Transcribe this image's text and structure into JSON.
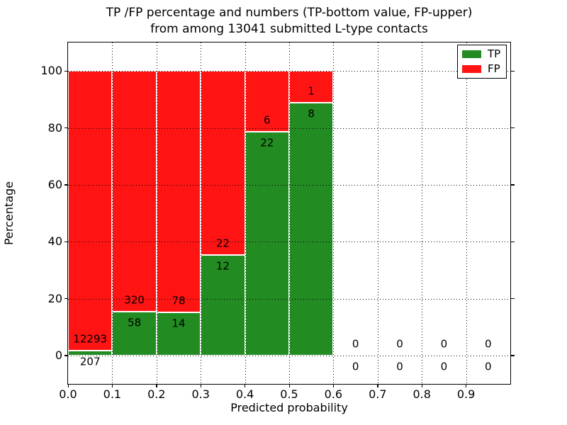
{
  "title": {
    "line1": "TP /FP percentage and numbers (TP-bottom value, FP-upper)",
    "line2": "from among 13041 submitted L-type contacts"
  },
  "colors": {
    "tp": "#228b22",
    "fp": "#ff1414",
    "grid": "#000000",
    "background": "#ffffff"
  },
  "legend": {
    "items": [
      {
        "label": "TP",
        "color_key": "tp"
      },
      {
        "label": "FP",
        "color_key": "fp"
      }
    ]
  },
  "chart_data": {
    "type": "bar",
    "stacked": true,
    "title": "TP /FP percentage and numbers (TP-bottom value, FP-upper) from among 13041 submitted L-type contacts",
    "xlabel": "Predicted probability",
    "ylabel": "Percentage",
    "total_contacts": 13041,
    "xlim": [
      0.0,
      1.0
    ],
    "ylim": [
      -10,
      110
    ],
    "grid": true,
    "legend_position": "upper right",
    "series_note": "bar height = count percentage of bin total; TP green bottom, FP red top, stacked to 100",
    "xticks": [
      {
        "value": 0.0,
        "label": "0.0"
      },
      {
        "value": 0.1,
        "label": "0.1"
      },
      {
        "value": 0.2,
        "label": "0.2"
      },
      {
        "value": 0.3,
        "label": "0.3"
      },
      {
        "value": 0.4,
        "label": "0.4"
      },
      {
        "value": 0.5,
        "label": "0.5"
      },
      {
        "value": 0.6,
        "label": "0.6"
      },
      {
        "value": 0.7,
        "label": "0.7"
      },
      {
        "value": 0.8,
        "label": "0.8"
      },
      {
        "value": 0.9,
        "label": "0.9"
      }
    ],
    "yticks": [
      {
        "value": 0,
        "label": "0"
      },
      {
        "value": 20,
        "label": "20"
      },
      {
        "value": 40,
        "label": "40"
      },
      {
        "value": 60,
        "label": "60"
      },
      {
        "value": 80,
        "label": "80"
      },
      {
        "value": 100,
        "label": "100"
      }
    ],
    "bins": [
      {
        "x_start": 0.0,
        "x_end": 0.1,
        "tp": 207,
        "fp": 12293
      },
      {
        "x_start": 0.1,
        "x_end": 0.2,
        "tp": 58,
        "fp": 320
      },
      {
        "x_start": 0.2,
        "x_end": 0.3,
        "tp": 14,
        "fp": 78
      },
      {
        "x_start": 0.3,
        "x_end": 0.4,
        "tp": 12,
        "fp": 22
      },
      {
        "x_start": 0.4,
        "x_end": 0.5,
        "tp": 22,
        "fp": 6
      },
      {
        "x_start": 0.5,
        "x_end": 0.6,
        "tp": 8,
        "fp": 1
      },
      {
        "x_start": 0.6,
        "x_end": 0.7,
        "tp": 0,
        "fp": 0
      },
      {
        "x_start": 0.7,
        "x_end": 0.8,
        "tp": 0,
        "fp": 0
      },
      {
        "x_start": 0.8,
        "x_end": 0.9,
        "tp": 0,
        "fp": 0
      },
      {
        "x_start": 0.9,
        "x_end": 1.0,
        "tp": 0,
        "fp": 0
      }
    ]
  }
}
